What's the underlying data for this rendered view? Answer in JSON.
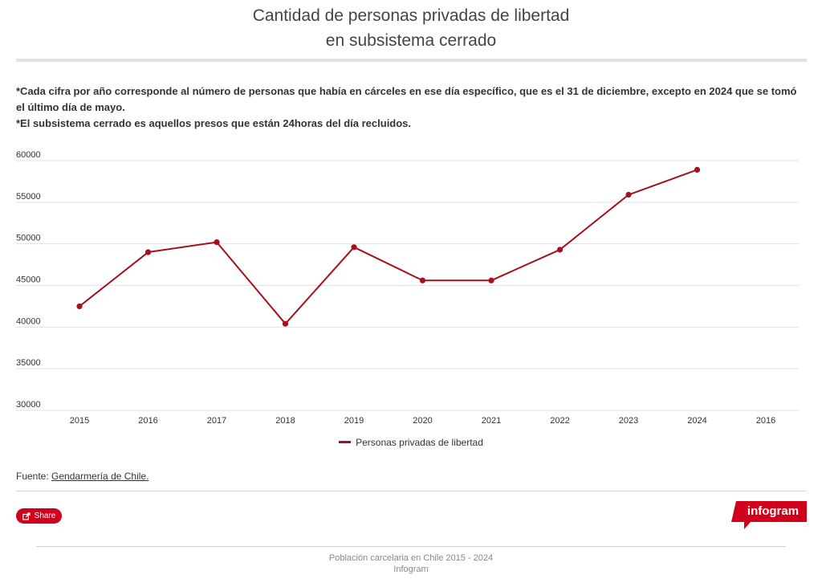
{
  "title_line1": "Cantidad de personas privadas de libertad",
  "title_line2": "en subsistema cerrado",
  "note1": "*Cada cifra por año corresponde al número de personas que había en cárceles en ese día específico, que es el 31 de diciembre, excepto en 2024 que se tomó el último día de mayo.",
  "note2": "*El subsistema cerrado es aquellos presos que están 24horas del día recluidos.",
  "source": {
    "label": "Fuente: ",
    "link_text": "Gendarmería de Chile."
  },
  "share_label": "Share",
  "brand_label": "infogram",
  "footer": {
    "line1": "Población carcelaria en Chile 2015 - 2024",
    "line2": "Infogram"
  },
  "colors": {
    "series": "#a3111e",
    "brand": "#d0021b",
    "grid": "#e0e0e0"
  },
  "chart_data": {
    "type": "line",
    "title": "Cantidad de personas privadas de libertad en subsistema cerrado",
    "categories": [
      "2015",
      "2016",
      "2017",
      "2018",
      "2019",
      "2020",
      "2021",
      "2022",
      "2023",
      "2024",
      "2016"
    ],
    "series": [
      {
        "name": "Personas privadas de libertad",
        "values": [
          42500,
          49000,
          50200,
          40400,
          49600,
          45600,
          45600,
          49300,
          55900,
          58900,
          null
        ]
      }
    ],
    "yticks": [
      30000,
      35000,
      40000,
      45000,
      50000,
      55000,
      60000
    ],
    "ylim": [
      30000,
      60000
    ],
    "xlabel": "",
    "ylabel": "",
    "grid": true,
    "legend": "bottom-center"
  }
}
